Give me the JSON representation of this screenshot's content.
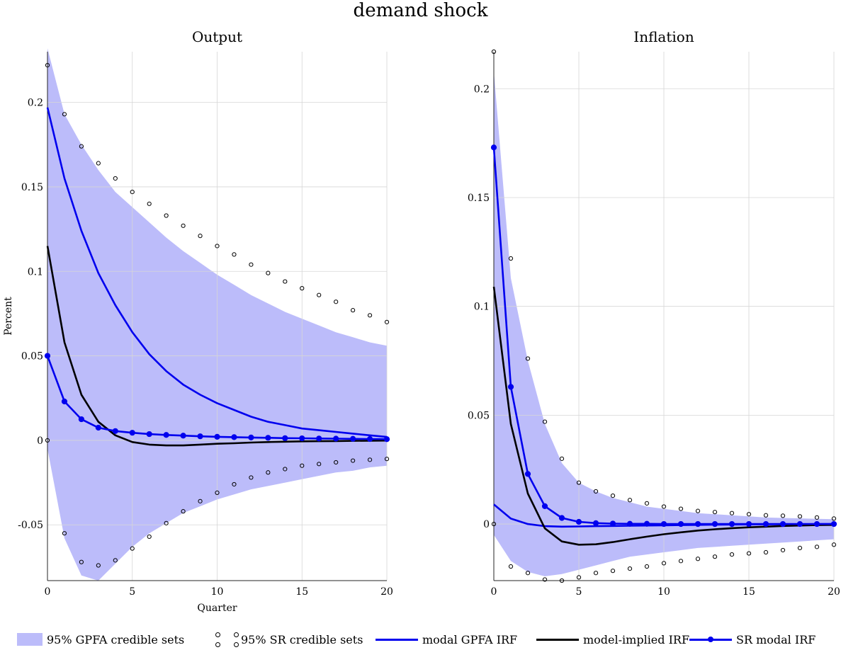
{
  "figure": {
    "suptitle": "demand shock"
  },
  "colors": {
    "band": "#bcbcfa",
    "modal_gpfa": "#0000ee",
    "model_implied": "#000000",
    "sr_modal": "#0000ee",
    "sr_dots": "#000000",
    "grid": "#d6d6d6"
  },
  "legend": {
    "placement": "bottom",
    "items": [
      {
        "label": "95% GPFA credible sets",
        "kind": "fill"
      },
      {
        "label": "95% SR credible sets",
        "kind": "circles"
      },
      {
        "label": "modal GPFA IRF",
        "kind": "line"
      },
      {
        "label": "model-implied IRF",
        "kind": "line-black"
      },
      {
        "label": "SR modal IRF",
        "kind": "line-marker"
      }
    ]
  },
  "chart_data": [
    {
      "type": "line",
      "title": "Output",
      "xlabel": "Quarter",
      "ylabel": "Percent",
      "xlim": [
        0,
        20
      ],
      "ylim": [
        -0.083,
        0.23
      ],
      "xticks": [
        0,
        5,
        10,
        15,
        20
      ],
      "yticks": [
        -0.05,
        0,
        0.05,
        0.1,
        0.15,
        0.2
      ],
      "ytick_labels": [
        "-0.05",
        "0",
        "0.05",
        "0.1",
        "0.15",
        "0.2"
      ],
      "grid": true,
      "x": [
        0,
        1,
        2,
        3,
        4,
        5,
        6,
        7,
        8,
        9,
        10,
        11,
        12,
        13,
        14,
        15,
        16,
        17,
        18,
        19,
        20
      ],
      "band": {
        "name": "95% GPFA credible sets",
        "upper": [
          0.232,
          0.193,
          0.175,
          0.16,
          0.147,
          0.138,
          0.129,
          0.12,
          0.112,
          0.105,
          0.098,
          0.092,
          0.086,
          0.081,
          0.076,
          0.072,
          0.068,
          0.064,
          0.061,
          0.058,
          0.056
        ],
        "lower": [
          -0.005,
          -0.058,
          -0.08,
          -0.083,
          -0.073,
          -0.063,
          -0.055,
          -0.049,
          -0.043,
          -0.039,
          -0.035,
          -0.032,
          -0.029,
          -0.027,
          -0.025,
          -0.023,
          -0.021,
          -0.019,
          -0.018,
          -0.016,
          -0.015
        ]
      },
      "series": [
        {
          "name": "modal GPFA IRF",
          "values": [
            0.197,
            0.155,
            0.124,
            0.099,
            0.08,
            0.064,
            0.051,
            0.041,
            0.033,
            0.027,
            0.022,
            0.018,
            0.014,
            0.011,
            0.009,
            0.007,
            0.006,
            0.005,
            0.004,
            0.003,
            0.002
          ]
        },
        {
          "name": "model-implied IRF",
          "values": [
            0.115,
            0.058,
            0.027,
            0.011,
            0.003,
            -0.001,
            -0.0025,
            -0.003,
            -0.003,
            -0.0025,
            -0.002,
            -0.0017,
            -0.0013,
            -0.001,
            -0.0008,
            -0.0006,
            -0.0005,
            -0.0004,
            -0.0003,
            -0.0002,
            -0.0001
          ]
        },
        {
          "name": "SR modal IRF",
          "values": [
            0.05,
            0.023,
            0.0125,
            0.0075,
            0.0055,
            0.0045,
            0.0037,
            0.0032,
            0.0028,
            0.0024,
            0.0021,
            0.0019,
            0.0017,
            0.0015,
            0.0013,
            0.0012,
            0.0011,
            0.001,
            0.0009,
            0.0008,
            0.0007
          ]
        }
      ],
      "sr_credible_sets": {
        "name": "95% SR credible sets",
        "upper": [
          0.222,
          0.193,
          0.174,
          0.164,
          0.155,
          0.147,
          0.14,
          0.133,
          0.127,
          0.121,
          0.115,
          0.11,
          0.104,
          0.099,
          0.094,
          0.09,
          0.086,
          0.082,
          0.077,
          0.074,
          0.07
        ],
        "lower": [
          0.0,
          -0.055,
          -0.072,
          -0.074,
          -0.071,
          -0.064,
          -0.057,
          -0.049,
          -0.042,
          -0.036,
          -0.031,
          -0.026,
          -0.022,
          -0.019,
          -0.017,
          -0.015,
          -0.014,
          -0.013,
          -0.012,
          -0.0115,
          -0.011
        ]
      }
    },
    {
      "type": "line",
      "title": "Inflation",
      "xlabel": "",
      "ylabel": "",
      "xlim": [
        0,
        20
      ],
      "ylim": [
        -0.026,
        0.217
      ],
      "xticks": [
        0,
        5,
        10,
        15,
        20
      ],
      "yticks": [
        0,
        0.05,
        0.1,
        0.15,
        0.2
      ],
      "ytick_labels": [
        "0",
        "0.05",
        "0.1",
        "0.15",
        "0.2"
      ],
      "grid": true,
      "x": [
        0,
        1,
        2,
        3,
        4,
        5,
        6,
        7,
        8,
        9,
        10,
        11,
        12,
        13,
        14,
        15,
        16,
        17,
        18,
        19,
        20
      ],
      "band": {
        "name": "95% GPFA credible sets",
        "upper": [
          0.208,
          0.113,
          0.075,
          0.046,
          0.028,
          0.019,
          0.015,
          0.012,
          0.01,
          0.008,
          0.007,
          0.006,
          0.005,
          0.0045,
          0.004,
          0.0035,
          0.003,
          0.0028,
          0.0026,
          0.0024,
          0.0022
        ],
        "lower": [
          -0.005,
          -0.017,
          -0.022,
          -0.024,
          -0.023,
          -0.021,
          -0.019,
          -0.017,
          -0.015,
          -0.014,
          -0.013,
          -0.012,
          -0.011,
          -0.0105,
          -0.01,
          -0.0095,
          -0.009,
          -0.0085,
          -0.008,
          -0.0075,
          -0.007
        ]
      },
      "series": [
        {
          "name": "modal GPFA IRF",
          "values": [
            0.009,
            0.0025,
            0.0,
            -0.001,
            -0.0012,
            -0.0011,
            -0.001,
            -0.0009,
            -0.0008,
            -0.0007,
            -0.0006,
            -0.0005,
            -0.0004,
            -0.0003,
            -0.00025,
            -0.0002,
            -0.00015,
            -0.0001,
            -0.0001,
            -5e-05,
            0.0
          ]
        },
        {
          "name": "model-implied IRF",
          "values": [
            0.109,
            0.046,
            0.014,
            -0.002,
            -0.008,
            -0.0095,
            -0.0093,
            -0.0083,
            -0.007,
            -0.0058,
            -0.0047,
            -0.0038,
            -0.003,
            -0.0024,
            -0.0019,
            -0.0015,
            -0.0012,
            -0.0009,
            -0.0007,
            -0.0005,
            -0.0004
          ]
        },
        {
          "name": "SR modal IRF",
          "values": [
            0.173,
            0.063,
            0.023,
            0.0082,
            0.0028,
            0.001,
            0.0004,
            0.0002,
            0.0001,
            0.0001,
            0.0,
            0.0,
            0.0,
            0.0,
            0.0,
            0.0,
            0.0,
            0.0,
            0.0,
            0.0,
            0.0
          ]
        }
      ],
      "sr_credible_sets": {
        "name": "95% SR credible sets",
        "upper": [
          0.217,
          0.122,
          0.076,
          0.047,
          0.03,
          0.019,
          0.015,
          0.013,
          0.011,
          0.0095,
          0.008,
          0.007,
          0.006,
          0.0055,
          0.005,
          0.0045,
          0.004,
          0.0038,
          0.0035,
          0.003,
          0.0025
        ],
        "lower": [
          0.0,
          -0.0195,
          -0.0225,
          -0.0255,
          -0.026,
          -0.0245,
          -0.0225,
          -0.0215,
          -0.0205,
          -0.0195,
          -0.018,
          -0.017,
          -0.016,
          -0.015,
          -0.014,
          -0.0135,
          -0.013,
          -0.012,
          -0.011,
          -0.0105,
          -0.0095
        ]
      }
    }
  ]
}
